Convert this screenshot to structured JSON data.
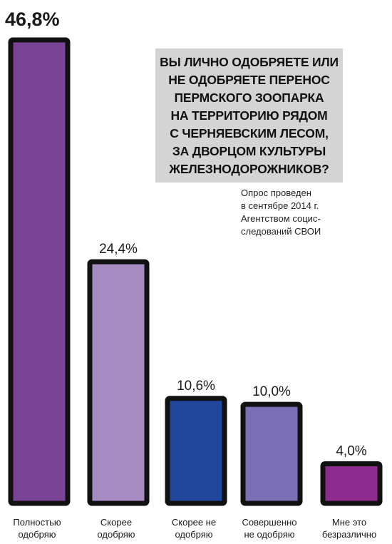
{
  "question": "ВЫ ЛИЧНО ОДОБРЯЕТЕ ИЛИ\nНЕ ОДОБРЯЕТЕ ПЕРЕНОС\nПЕРМСКОГО ЗООПАРКА\nНА ТЕРРИТОРИЮ РЯДОМ\nС ЧЕРНЯЕВСКИМ ЛЕСОМ,\nЗА ДВОРЦОМ КУЛЬТУРЫ\nЖЕЛЕЗНОДОРОЖНИКОВ?",
  "source_note": "Опрос проведен\nв сентябре 2014 г.\nАгентством социс-\nследований СВОИ",
  "colors": {
    "outline": "#111111",
    "highlight_label": "#1a9a52",
    "background": "#ffffff",
    "question_box": "#d4d4d4"
  },
  "chart_data": {
    "type": "bar",
    "categories": [
      [
        "Полностью",
        "одобряю"
      ],
      [
        "Скорее",
        "одобряю"
      ],
      [
        "Скорее не",
        "одобряю"
      ],
      [
        "Совершенно",
        "не одобряю"
      ],
      [
        "Мне это",
        "безразлично"
      ]
    ],
    "values": [
      46.8,
      24.4,
      10.6,
      10.0,
      4.0
    ],
    "value_labels": [
      "46,8%",
      "24,4%",
      "10,6%",
      "10,0%",
      "4,0%"
    ],
    "bar_colors": [
      "#7a4496",
      "#a78bc3",
      "#20479b",
      "#7b6fb6",
      "#8e2b8e"
    ],
    "highlight_index": 0,
    "ylim": [
      0,
      46.8
    ]
  }
}
